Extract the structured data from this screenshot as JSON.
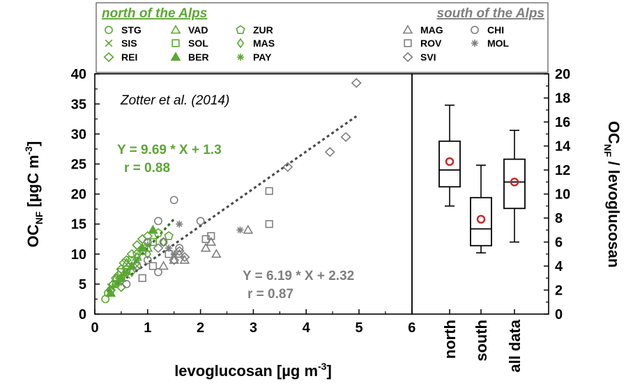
{
  "chart_data": [
    {
      "type": "scatter",
      "citation": "Zotter et al. (2014)",
      "xlabel": "levoglucosan [µg m⁻³]",
      "ylabel": "OC_NF [µgC m⁻³]",
      "xlim": [
        0,
        6
      ],
      "ylim": [
        0,
        40
      ],
      "x_ticks": [
        "0",
        "1",
        "2",
        "3",
        "4",
        "5",
        "6"
      ],
      "y_ticks": [
        "0",
        "5",
        "10",
        "15",
        "20",
        "25",
        "30",
        "35",
        "40"
      ],
      "colors": {
        "north": "#5aa832",
        "south": "#7f7f7f"
      },
      "legend": {
        "north_title": "north of the Alps",
        "south_title": "south of the Alps",
        "north_sites": [
          {
            "label": "STG",
            "marker": "circle"
          },
          {
            "label": "VAD",
            "marker": "triangle"
          },
          {
            "label": "ZUR",
            "marker": "pentagon"
          },
          {
            "label": "SIS",
            "marker": "cross"
          },
          {
            "label": "SOL",
            "marker": "square"
          },
          {
            "label": "MAS",
            "marker": "diamond-small"
          },
          {
            "label": "REI",
            "marker": "diamond"
          },
          {
            "label": "BER",
            "marker": "triangle-filled"
          },
          {
            "label": "PAY",
            "marker": "star"
          }
        ],
        "south_sites": [
          {
            "label": "MAG",
            "marker": "triangle"
          },
          {
            "label": "CHI",
            "marker": "circle"
          },
          {
            "label": "ROV",
            "marker": "square"
          },
          {
            "label": "MOL",
            "marker": "star"
          },
          {
            "label": "SVI",
            "marker": "diamond"
          }
        ]
      },
      "fits": [
        {
          "group": "north",
          "equation": "Y = 9.69 * X + 1.3",
          "r": "r = 0.88",
          "slope": 9.69,
          "intercept": 1.3,
          "x_range": [
            0.25,
            1.5
          ]
        },
        {
          "group": "south",
          "equation": "Y = 6.19 * X + 2.32",
          "r": "r = 0.87",
          "slope": 6.19,
          "intercept": 2.32,
          "x_range": [
            0.25,
            4.95
          ]
        }
      ],
      "series": [
        {
          "name": "STG",
          "group": "north",
          "marker": "circle",
          "points": [
            [
              0.2,
              2.5
            ],
            [
              0.25,
              3.5
            ],
            [
              0.3,
              4
            ],
            [
              0.4,
              5
            ],
            [
              0.5,
              6
            ],
            [
              0.6,
              7
            ]
          ]
        },
        {
          "name": "SIS",
          "group": "north",
          "marker": "cross",
          "points": [
            [
              0.3,
              4.5
            ],
            [
              0.45,
              5.5
            ],
            [
              0.6,
              6.5
            ],
            [
              0.8,
              8
            ]
          ]
        },
        {
          "name": "REI",
          "group": "north",
          "marker": "diamond",
          "points": [
            [
              0.3,
              4
            ],
            [
              0.35,
              5
            ],
            [
              0.4,
              6
            ],
            [
              0.5,
              7.5
            ],
            [
              0.55,
              8.5
            ],
            [
              0.6,
              9
            ],
            [
              0.7,
              10
            ],
            [
              0.8,
              11.5
            ],
            [
              0.9,
              12.5
            ],
            [
              1.0,
              13
            ],
            [
              0.5,
              4.5
            ],
            [
              0.45,
              6.5
            ]
          ]
        },
        {
          "name": "VAD",
          "group": "north",
          "marker": "triangle",
          "points": [
            [
              0.4,
              6
            ],
            [
              0.6,
              8.5
            ],
            [
              0.8,
              9.5
            ],
            [
              1.0,
              11
            ]
          ]
        },
        {
          "name": "SOL",
          "group": "north",
          "marker": "square",
          "points": [
            [
              0.5,
              7
            ],
            [
              0.7,
              9
            ],
            [
              0.9,
              10.5
            ],
            [
              1.1,
              12
            ]
          ]
        },
        {
          "name": "BER",
          "group": "north",
          "marker": "triangle-filled",
          "points": [
            [
              0.3,
              3.5
            ],
            [
              0.5,
              6
            ],
            [
              0.7,
              8
            ],
            [
              0.9,
              11
            ],
            [
              1.1,
              14
            ]
          ]
        },
        {
          "name": "ZUR",
          "group": "north",
          "marker": "pentagon",
          "points": [
            [
              0.6,
              7.5
            ],
            [
              0.8,
              10
            ],
            [
              1.2,
              13.5
            ],
            [
              1.4,
              13
            ]
          ]
        },
        {
          "name": "MAS",
          "group": "north",
          "marker": "diamond-small",
          "points": [
            [
              0.5,
              5.5
            ],
            [
              0.7,
              7
            ],
            [
              1.0,
              10
            ],
            [
              1.3,
              12
            ]
          ]
        },
        {
          "name": "PAY",
          "group": "north",
          "marker": "star",
          "points": [
            [
              0.4,
              5
            ],
            [
              0.6,
              7
            ],
            [
              0.8,
              9
            ],
            [
              1.0,
              11.5
            ]
          ]
        },
        {
          "name": "MAG",
          "group": "south",
          "marker": "triangle",
          "points": [
            [
              1.3,
              8
            ],
            [
              1.5,
              9
            ],
            [
              1.6,
              10
            ],
            [
              1.7,
              9
            ],
            [
              2.1,
              11
            ],
            [
              2.2,
              12
            ],
            [
              2.3,
              10
            ],
            [
              2.9,
              14
            ]
          ]
        },
        {
          "name": "CHI",
          "group": "south",
          "marker": "circle",
          "points": [
            [
              0.6,
              5
            ],
            [
              0.8,
              8
            ],
            [
              1.0,
              9
            ],
            [
              1.2,
              7
            ],
            [
              1.0,
              12
            ],
            [
              1.2,
              15.5
            ],
            [
              1.3,
              12
            ],
            [
              1.5,
              19
            ],
            [
              1.6,
              11
            ],
            [
              2.0,
              15.5
            ]
          ]
        },
        {
          "name": "ROV",
          "group": "south",
          "marker": "square",
          "points": [
            [
              0.9,
              6
            ],
            [
              1.1,
              8
            ],
            [
              1.4,
              10
            ],
            [
              2.1,
              12.5
            ],
            [
              2.2,
              13
            ],
            [
              3.3,
              15
            ],
            [
              3.3,
              20.5
            ]
          ]
        },
        {
          "name": "MOL",
          "group": "south",
          "marker": "star",
          "points": [
            [
              1.4,
              11
            ],
            [
              1.6,
              15
            ],
            [
              2.75,
              14
            ],
            [
              1.5,
              10
            ]
          ]
        },
        {
          "name": "SVI",
          "group": "south",
          "marker": "diamond",
          "points": [
            [
              1.2,
              11
            ],
            [
              1.5,
              9
            ],
            [
              1.6,
              10.5
            ],
            [
              1.7,
              9.5
            ],
            [
              3.65,
              24.5
            ],
            [
              4.45,
              27
            ],
            [
              4.75,
              29.5
            ],
            [
              4.95,
              38.5
            ]
          ]
        }
      ]
    },
    {
      "type": "box",
      "ylabel": "OC_NF / levoglucosan",
      "ylim": [
        0,
        20
      ],
      "y_ticks": [
        "0",
        "2",
        "4",
        "6",
        "8",
        "10",
        "12",
        "14",
        "16",
        "18",
        "20"
      ],
      "categories": [
        "north",
        "south",
        "all data"
      ],
      "boxes": [
        {
          "category": "north",
          "whisker_low": 9.0,
          "q1": 10.6,
          "median": 12.0,
          "q3": 14.4,
          "whisker_high": 17.4,
          "mean": 12.7
        },
        {
          "category": "south",
          "whisker_low": 5.1,
          "q1": 5.7,
          "median": 7.1,
          "q3": 9.7,
          "whisker_high": 12.4,
          "mean": 7.9
        },
        {
          "category": "all data",
          "whisker_low": 6.0,
          "q1": 8.8,
          "median": 11.0,
          "q3": 12.9,
          "whisker_high": 15.3,
          "mean": 11.0
        }
      ],
      "colors": {
        "box": "#000000",
        "mean": "#cc2222"
      }
    }
  ]
}
